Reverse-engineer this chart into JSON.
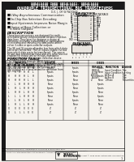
{
  "bg_color": "#f0ede8",
  "page_bg": "#f0ede8",
  "title_lines": [
    "SN54LS440 THRU SN54LS442, SN54LS444",
    "SN74LS440 THRU SN74LS442, SN74LS444",
    "QUADRUPLE TRIDIRECTIONAL BUS TRANSCEIVERS"
  ],
  "subtitle": "D-K, J, OR W PACKAGE",
  "bullet_points": [
    "3-Way Asynchronous Communication",
    "On-Chip Bus Selection Decoding",
    "Input Hysteresis Improves Noise Margin",
    "Choice of Base Collection or 3-State Outputs"
  ],
  "description_header": "DESCRIPTION",
  "ti_logo_text": "TEXAS\nINSTRUMENTS",
  "copyright_text": "Copyright © 1988 Texas Instruments Incorporated"
}
